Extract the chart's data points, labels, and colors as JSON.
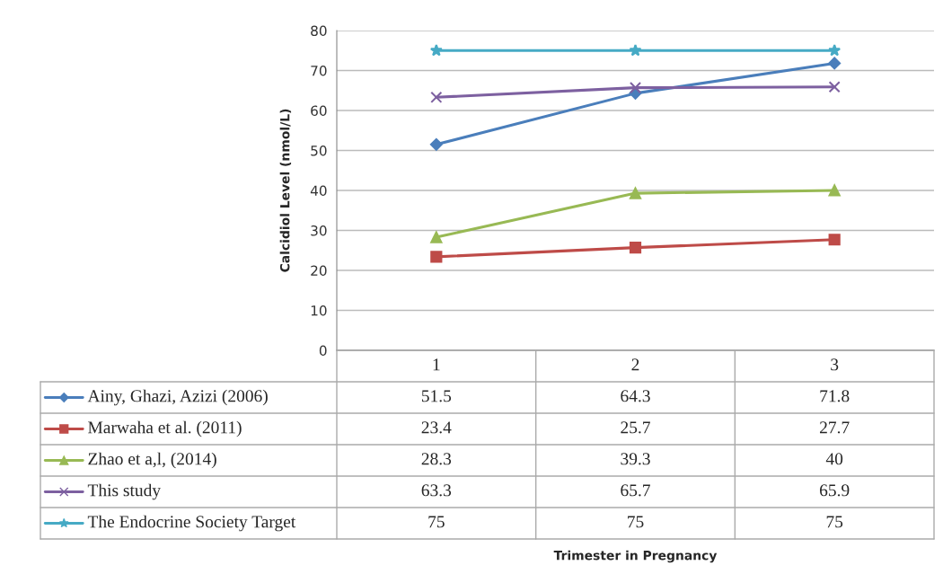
{
  "chart_data": {
    "type": "line",
    "annotations": [
      "Trimester in Pregnancy"
    ],
    "ylabel": "Calcidiol Level (nmol/L)",
    "categories": [
      "1",
      "2",
      "3"
    ],
    "series": [
      {
        "name": "Ainy, Ghazi, Azizi (2006)",
        "color": "#4a7ebb",
        "marker": "diamond",
        "values": [
          51.5,
          64.3,
          71.8
        ]
      },
      {
        "name": "Marwaha et al. (2011)",
        "color": "#be4b48",
        "marker": "square",
        "values": [
          23.4,
          25.7,
          27.7
        ]
      },
      {
        "name": "Zhao et a,l, (2014)",
        "color": "#98b954",
        "marker": "triangle",
        "values": [
          28.3,
          39.3,
          40
        ]
      },
      {
        "name": "This study",
        "color": "#7d60a0",
        "marker": "cross",
        "values": [
          63.3,
          65.7,
          65.9
        ]
      },
      {
        "name": "The Endocrine Society Target",
        "color": "#46aac5",
        "marker": "star",
        "values": [
          75,
          75,
          75
        ]
      }
    ],
    "ylim": [
      0,
      80
    ],
    "yticks": [
      0,
      10,
      20,
      30,
      40,
      50,
      60,
      70,
      80
    ],
    "grid": "y",
    "legend": "bottom",
    "data_labels": true,
    "line_style": "solid"
  }
}
